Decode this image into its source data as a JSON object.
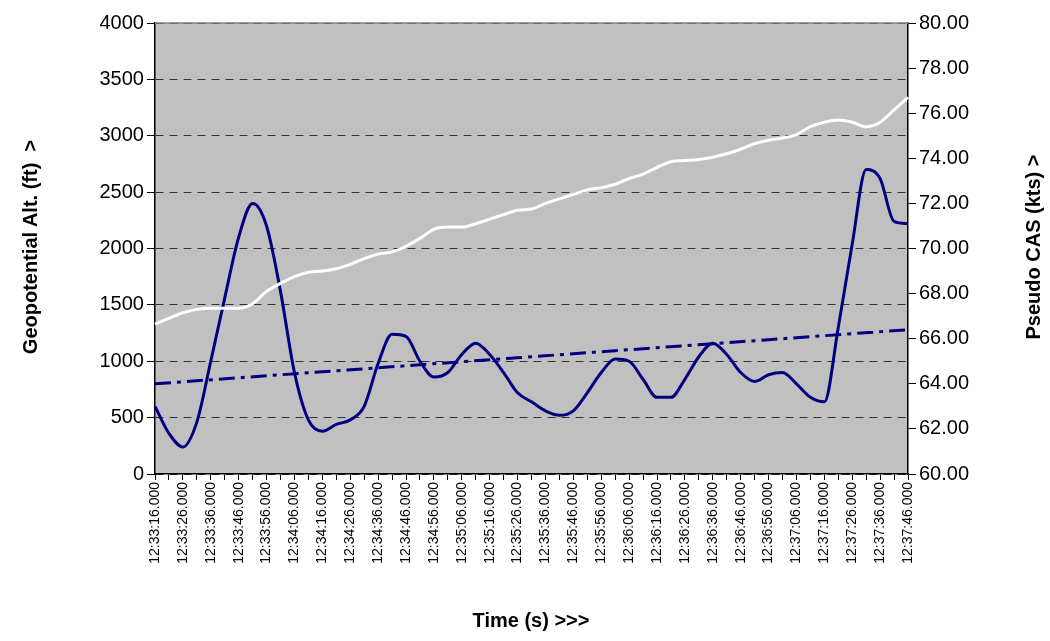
{
  "chart_data": {
    "type": "line",
    "xlabel": "Time (s) >>>",
    "ylabel": "Geopotential Alt. (ft)  >",
    "y2label": "Pseudo CAS (kts) >",
    "categories": [
      "12:33:16.000",
      null,
      "12:33:26.000",
      null,
      "12:33:36.000",
      null,
      "12:33:46.000",
      null,
      "12:33:56.000",
      null,
      "12:34:06.000",
      null,
      "12:34:16.000",
      null,
      "12:34:26.000",
      null,
      "12:34:36.000",
      null,
      "12:34:46.000",
      null,
      "12:34:56.000",
      null,
      "12:35:06.000",
      null,
      "12:35:16.000",
      null,
      "12:35:26.000",
      null,
      "12:35:36.000",
      null,
      "12:35:46.000",
      null,
      "12:35:56.000",
      null,
      "12:36:06.000",
      null,
      "12:36:16.000",
      null,
      "12:36:26.000",
      null,
      "12:36:36.000",
      null,
      "12:36:46.000",
      null,
      "12:36:56.000",
      null,
      "12:37:06.000",
      null,
      "12:37:16.000",
      null,
      "12:37:26.000",
      null,
      "12:37:36.000",
      null,
      "12:37:46.000"
    ],
    "series": [
      {
        "color": "#ffffff",
        "values": [
          1330,
          1380,
          1430,
          1460,
          1470,
          1470,
          1470,
          1510,
          1620,
          1690,
          1750,
          1790,
          1800,
          1820,
          1860,
          1910,
          1950,
          1970,
          2020,
          2090,
          2170,
          2190,
          2190,
          2220,
          2260,
          2300,
          2340,
          2350,
          2400,
          2440,
          2480,
          2520,
          2540,
          2570,
          2620,
          2660,
          2720,
          2770,
          2780,
          2790,
          2810,
          2840,
          2880,
          2930,
          2960,
          2980,
          3010,
          3080,
          3120,
          3140,
          3120,
          3080,
          3120,
          3230,
          3340
        ]
      },
      {
        "color": "#000080",
        "axis": "y2",
        "values": [
          63.0,
          61.8,
          61.2,
          62.3,
          65.0,
          67.8,
          70.5,
          72.0,
          71.0,
          68.1,
          64.5,
          62.4,
          61.9,
          62.2,
          62.4,
          63.0,
          64.9,
          66.2,
          66.1,
          65.0,
          64.3,
          64.5,
          65.3,
          65.8,
          65.3,
          64.5,
          63.6,
          63.2,
          62.8,
          62.6,
          62.8,
          63.6,
          64.5,
          65.1,
          65.0,
          64.2,
          63.4,
          63.4,
          64.2,
          65.2,
          65.8,
          65.3,
          64.5,
          64.1,
          64.4,
          64.5,
          64.0,
          63.4,
          63.2,
          66.5,
          70.2,
          73.5,
          73.1,
          71.2,
          71.1
        ]
      },
      {
        "color": "#000080",
        "axis": "y2",
        "type": "line",
        "line_style": "dashed",
        "x": [
          "12:33:16.000",
          "12:37:46.000"
        ],
        "values": [
          64.0,
          66.4
        ]
      }
    ],
    "ylim": [
      0,
      4000
    ],
    "yticks": [
      0,
      500,
      1000,
      1500,
      2000,
      2500,
      3000,
      3500,
      4000
    ],
    "y2lim": [
      60,
      80
    ],
    "y2ticks": [
      {
        "value": 60,
        "label": "60.00"
      },
      {
        "value": 62,
        "label": "62.00"
      },
      {
        "value": 64,
        "label": "64.00"
      },
      {
        "value": 66,
        "label": "66.00"
      },
      {
        "value": 68,
        "label": "68.00"
      },
      {
        "value": 70,
        "label": "70.00"
      },
      {
        "value": 72,
        "label": "72.00"
      },
      {
        "value": 74,
        "label": "74.00"
      },
      {
        "value": 76,
        "label": "76.00"
      },
      {
        "value": 78,
        "label": "78.00"
      },
      {
        "value": 80,
        "label": "80.00"
      }
    ],
    "grid": "y",
    "marker": "none",
    "legend": false
  }
}
